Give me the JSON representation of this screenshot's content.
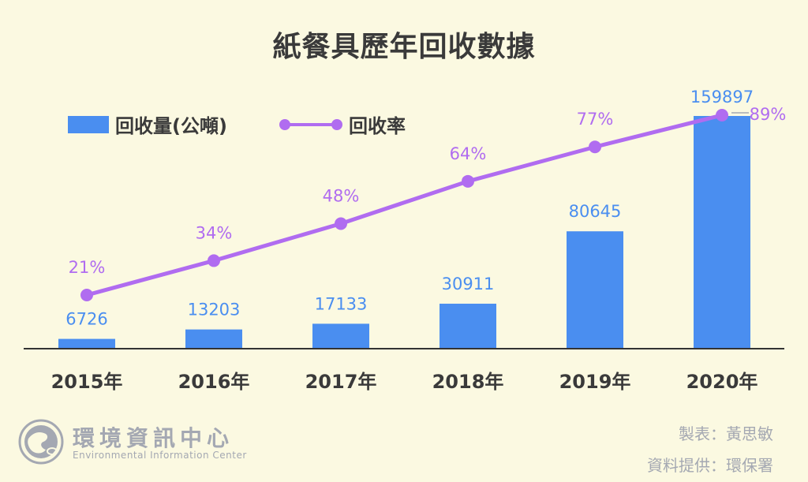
{
  "colors": {
    "background": "#fbf9e1",
    "bar": "#4a8ef0",
    "line": "#b06cf0",
    "title": "#3a3a3a",
    "axis": "#333333",
    "credit": "#a4a8b2"
  },
  "chart_data": {
    "type": "bar",
    "title": "紙餐具歷年回收數據",
    "categories": [
      "2015年",
      "2016年",
      "2017年",
      "2018年",
      "2019年",
      "2020年"
    ],
    "series": [
      {
        "name": "回收量(公噸)",
        "type": "bar",
        "values": [
          6726,
          13203,
          17133,
          30911,
          80645,
          159897
        ],
        "labels": [
          "6726",
          "13203",
          "17133",
          "30911",
          "80645",
          "159897"
        ]
      },
      {
        "name": "回收率",
        "type": "line",
        "values": [
          21,
          34,
          48,
          64,
          77,
          89
        ],
        "labels": [
          "21%",
          "34%",
          "48%",
          "64%",
          "77%",
          "89%"
        ]
      }
    ],
    "legend": "top-left"
  },
  "credits": {
    "made_by": "製表：黃思敏",
    "source": "資料提供：環保署"
  },
  "logo": {
    "name": "環境資訊中心",
    "subtitle": "Environmental Information Center"
  }
}
